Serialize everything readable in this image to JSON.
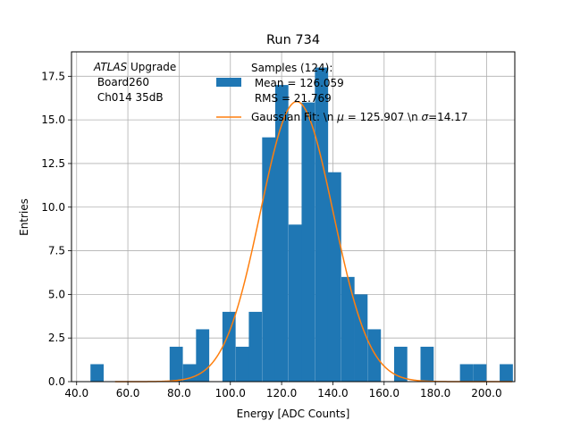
{
  "chart_data": {
    "type": "bar",
    "title": "Run 734",
    "xlabel": "Energy [ADC Counts]",
    "ylabel": "Entries",
    "xlim": [
      38,
      211
    ],
    "ylim": [
      0,
      18.9
    ],
    "grid": true,
    "xticks": [
      40,
      60,
      80,
      100,
      120,
      140,
      160,
      180,
      200
    ],
    "xtick_labels": [
      "40.0",
      "60.0",
      "80.0",
      "100.0",
      "120.0",
      "140.0",
      "160.0",
      "180.0",
      "200.0"
    ],
    "yticks": [
      0,
      2.5,
      5,
      7.5,
      10,
      12.5,
      15,
      17.5
    ],
    "ytick_labels": [
      "0.0",
      "2.5",
      "5.0",
      "7.5",
      "10.0",
      "12.5",
      "15.0",
      "17.5"
    ],
    "annotation": {
      "italic": "ATLAS",
      "text": " Upgrade",
      "line2": " Board260",
      "line3": " Ch014 35dB"
    },
    "histogram": {
      "name_lines": [
        "Samples (124):",
        " Mean = 126.059",
        " RMS = 21.769"
      ],
      "color": "#1f77b4",
      "bin_width": 5.15,
      "bins": [
        {
          "x": 45.4,
          "count": 1
        },
        {
          "x": 76.3,
          "count": 2
        },
        {
          "x": 81.5,
          "count": 1
        },
        {
          "x": 86.6,
          "count": 3
        },
        {
          "x": 96.9,
          "count": 4
        },
        {
          "x": 102.1,
          "count": 2
        },
        {
          "x": 107.2,
          "count": 4
        },
        {
          "x": 112.4,
          "count": 14
        },
        {
          "x": 117.5,
          "count": 17
        },
        {
          "x": 122.7,
          "count": 9
        },
        {
          "x": 127.8,
          "count": 16
        },
        {
          "x": 133.0,
          "count": 18
        },
        {
          "x": 138.1,
          "count": 12
        },
        {
          "x": 143.3,
          "count": 6
        },
        {
          "x": 148.4,
          "count": 5
        },
        {
          "x": 153.6,
          "count": 3
        },
        {
          "x": 163.9,
          "count": 2
        },
        {
          "x": 174.2,
          "count": 2
        },
        {
          "x": 189.6,
          "count": 1
        },
        {
          "x": 194.8,
          "count": 1
        },
        {
          "x": 205.1,
          "count": 1
        }
      ]
    },
    "fit": {
      "name": "Gaussian Fit: \\n $\\mu$ = 125.907 \\n $\\sigma$=14.17",
      "name_parts": [
        "Gaussian Fit: \\n ",
        "μ",
        " = 125.907 \\n ",
        "σ",
        "=14.17"
      ],
      "color": "#ff7f0e",
      "mu": 125.907,
      "sigma": 14.17,
      "amplitude": 16.05,
      "x_range": [
        55,
        210
      ]
    },
    "legend_position": "top-right"
  }
}
